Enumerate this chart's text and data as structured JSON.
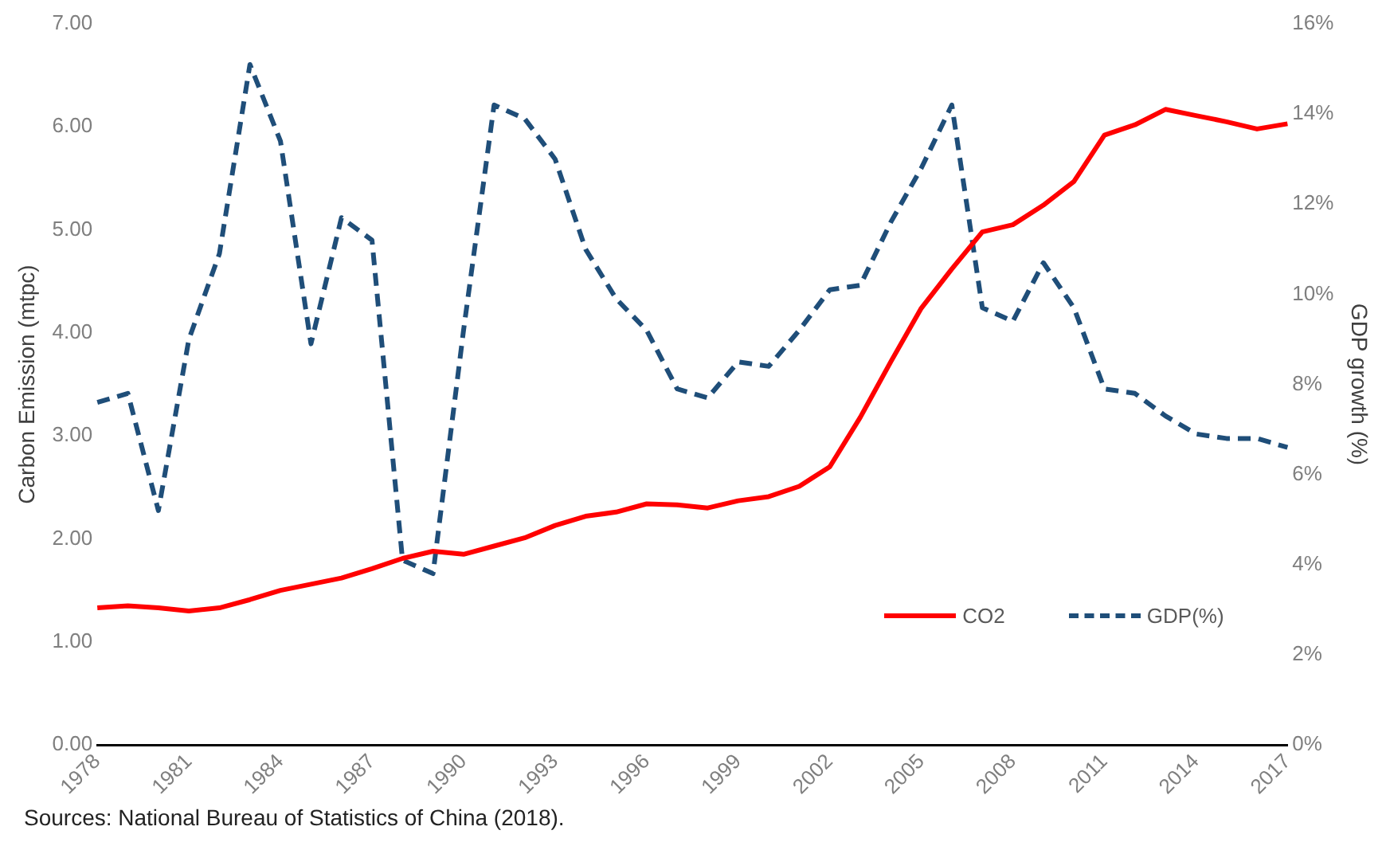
{
  "chart_data": {
    "type": "line",
    "categories": [
      "1978",
      null,
      null,
      "1981",
      null,
      null,
      "1984",
      null,
      null,
      "1987",
      null,
      null,
      "1990",
      null,
      null,
      "1993",
      null,
      null,
      "1996",
      null,
      null,
      "1999",
      null,
      null,
      "2002",
      null,
      null,
      "2005",
      null,
      null,
      "2008",
      null,
      null,
      "2011",
      null,
      null,
      "2014",
      null,
      null,
      "2017"
    ],
    "series": [
      {
        "name": "CO2",
        "color": "#ff0000",
        "line_style": "solid",
        "values": [
          1.33,
          1.35,
          1.33,
          1.3,
          1.33,
          1.41,
          1.5,
          1.56,
          1.62,
          1.71,
          1.81,
          1.88,
          1.85,
          1.93,
          2.01,
          2.13,
          2.22,
          2.26,
          2.34,
          2.33,
          2.3,
          2.37,
          2.41,
          2.51,
          2.7,
          3.18,
          3.72,
          4.24,
          4.62,
          4.98,
          5.05,
          5.24,
          5.47,
          5.92,
          6.02,
          6.17,
          6.11,
          6.05,
          5.98,
          6.03
        ]
      },
      {
        "name": "GDP(%)",
        "color": "#1f4e79",
        "line_style": "dashed",
        "axis": "y2",
        "values": [
          7.6,
          7.8,
          5.2,
          9.0,
          10.9,
          15.1,
          13.4,
          8.9,
          11.7,
          11.2,
          4.1,
          3.8,
          9.2,
          14.2,
          13.9,
          13.0,
          11.0,
          9.9,
          9.2,
          7.9,
          7.7,
          8.5,
          8.4,
          9.2,
          10.1,
          10.2,
          11.6,
          12.8,
          14.2,
          9.7,
          9.4,
          10.7,
          9.7,
          7.9,
          7.8,
          7.3,
          6.9,
          6.8,
          6.8,
          6.6
        ]
      }
    ],
    "ylabel": "Carbon Emission (mtpc)",
    "y2label": "GDP growth (%)",
    "ylim": [
      0,
      7
    ],
    "yticks": [
      {
        "value": 0,
        "label": "0.00"
      },
      {
        "value": 1,
        "label": "1.00"
      },
      {
        "value": 2,
        "label": "2.00"
      },
      {
        "value": 3,
        "label": "3.00"
      },
      {
        "value": 4,
        "label": "4.00"
      },
      {
        "value": 5,
        "label": "5.00"
      },
      {
        "value": 6,
        "label": "6.00"
      },
      {
        "value": 7,
        "label": "7.00"
      }
    ],
    "y2lim": [
      0,
      16
    ],
    "y2ticks": [
      {
        "value": 0,
        "label": "0%"
      },
      {
        "value": 2,
        "label": "2%"
      },
      {
        "value": 4,
        "label": "4%"
      },
      {
        "value": 6,
        "label": "6%"
      },
      {
        "value": 8,
        "label": "8%"
      },
      {
        "value": 10,
        "label": "10%"
      },
      {
        "value": 12,
        "label": "12%"
      },
      {
        "value": 14,
        "label": "14%"
      },
      {
        "value": 16,
        "label": "16%"
      }
    ],
    "grid": false,
    "legend": "bottom right",
    "marker": "none",
    "annotations": [
      "Sources: National Bureau of Statistics of China (2018)."
    ]
  }
}
